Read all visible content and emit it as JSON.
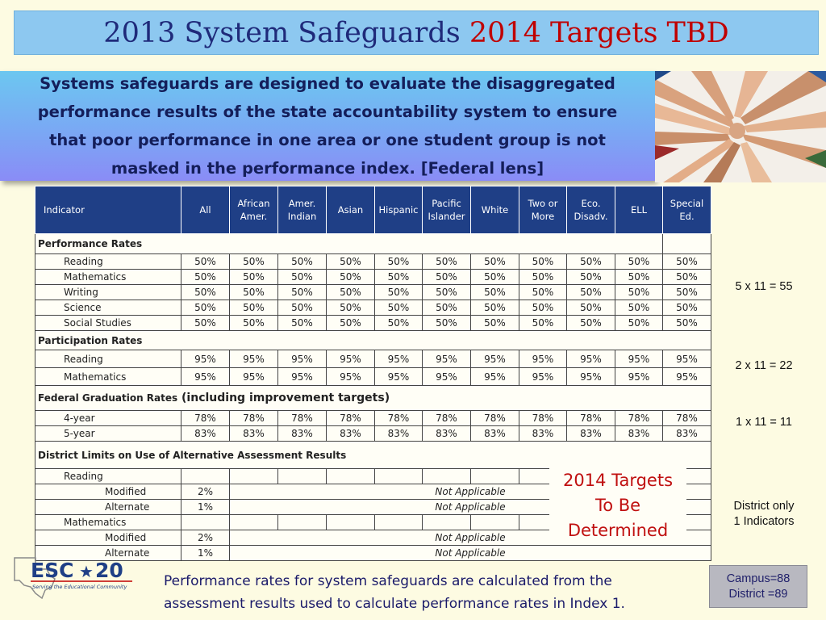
{
  "title": {
    "part1": "2013 System Safeguards",
    "part2": "2014 Targets TBD"
  },
  "intro": "Systems safeguards are designed to evaluate the disaggregated performance results of the state accountability system to ensure that poor performance in one area or one student group is not masked in the performance index. [Federal lens]",
  "table": {
    "headers": [
      "Indicator",
      "All",
      "African Amer.",
      "Amer. Indian",
      "Asian",
      "Hispanic",
      "Pacific Islander",
      "White",
      "Two or More",
      "Eco. Disadv.",
      "ELL",
      "Special Ed."
    ],
    "performance": {
      "title": "Performance Rates",
      "rows": [
        {
          "label": "Reading",
          "values": [
            "50%",
            "50%",
            "50%",
            "50%",
            "50%",
            "50%",
            "50%",
            "50%",
            "50%",
            "50%",
            "50%"
          ]
        },
        {
          "label": "Mathematics",
          "values": [
            "50%",
            "50%",
            "50%",
            "50%",
            "50%",
            "50%",
            "50%",
            "50%",
            "50%",
            "50%",
            "50%"
          ]
        },
        {
          "label": "Writing",
          "values": [
            "50%",
            "50%",
            "50%",
            "50%",
            "50%",
            "50%",
            "50%",
            "50%",
            "50%",
            "50%",
            "50%"
          ]
        },
        {
          "label": "Science",
          "values": [
            "50%",
            "50%",
            "50%",
            "50%",
            "50%",
            "50%",
            "50%",
            "50%",
            "50%",
            "50%",
            "50%"
          ]
        },
        {
          "label": "Social Studies",
          "values": [
            "50%",
            "50%",
            "50%",
            "50%",
            "50%",
            "50%",
            "50%",
            "50%",
            "50%",
            "50%",
            "50%"
          ]
        }
      ]
    },
    "participation": {
      "title": "Participation Rates",
      "rows": [
        {
          "label": "Reading",
          "values": [
            "95%",
            "95%",
            "95%",
            "95%",
            "95%",
            "95%",
            "95%",
            "95%",
            "95%",
            "95%",
            "95%"
          ]
        },
        {
          "label": "Mathematics",
          "values": [
            "95%",
            "95%",
            "95%",
            "95%",
            "95%",
            "95%",
            "95%",
            "95%",
            "95%",
            "95%",
            "95%"
          ]
        }
      ]
    },
    "graduation": {
      "title_a": "Federal Graduation Rates",
      "title_b": " (including improvement targets)",
      "rows": [
        {
          "label": "4-year",
          "values": [
            "78%",
            "78%",
            "78%",
            "78%",
            "78%",
            "78%",
            "78%",
            "78%",
            "78%",
            "78%",
            "78%"
          ]
        },
        {
          "label": "5-year",
          "values": [
            "83%",
            "83%",
            "83%",
            "83%",
            "83%",
            "83%",
            "83%",
            "83%",
            "83%",
            "83%",
            "83%"
          ]
        }
      ]
    },
    "alt_assessment": {
      "title": "District Limits on Use of Alternative Assessment Results",
      "reading_label": "Reading",
      "mathematics_label": "Mathematics",
      "modified_label": "Modified",
      "alternate_label": "Alternate",
      "reading_modified": "2%",
      "reading_alternate": "1%",
      "math_modified": "2%",
      "math_alternate": "1%",
      "not_applicable": "Not Applicable"
    }
  },
  "counts": {
    "performance": "5 x 11 = 55",
    "participation": "2 x 11 = 22",
    "graduation": "1 x 11 = 11",
    "district_line1": "District only",
    "district_line2": "1 Indicators"
  },
  "targets_box": {
    "line1": "2014 Targets",
    "line2": "To Be",
    "line3": "Determined"
  },
  "logo": {
    "text": "ESC",
    "number": "20",
    "tagline": "Serving the Educational Community"
  },
  "footer": "Performance rates for system safeguards are calculated from the assessment results used to calculate performance rates in Index 1.",
  "campus_box": {
    "line1": "Campus=88",
    "line2": "District =89"
  },
  "colors": {
    "header_bg": "#1f3f86",
    "title_bg": "#8dc8f0",
    "title_red": "#c00000",
    "targets_red": "#c01010"
  }
}
